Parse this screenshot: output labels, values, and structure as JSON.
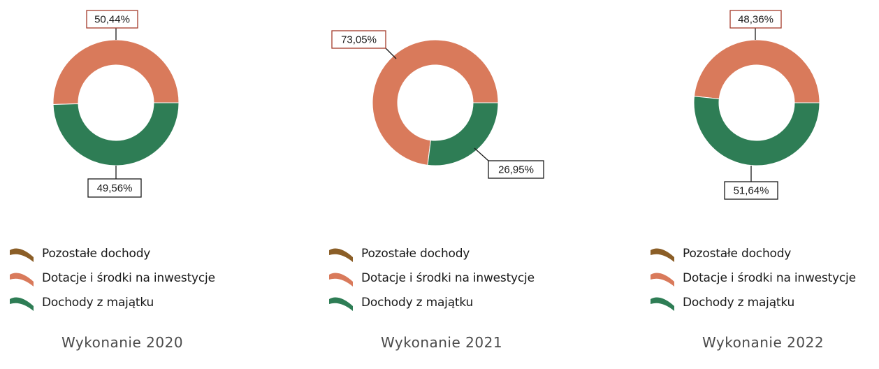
{
  "colors": {
    "pozostale": "#8B5E27",
    "dotacje": "#D97A5B",
    "majatek": "#2E7D55"
  },
  "chart_data": [
    {
      "type": "pie",
      "variant": "donut",
      "title": "Wykonanie 2020",
      "legend_position": "bottom",
      "categories": [
        "Pozostałe dochody",
        "Dotacje i środki na inwestycje",
        "Dochody z majątku"
      ],
      "values": [
        0.0,
        50.44,
        49.56
      ],
      "data_labels": [
        "",
        "50,44%",
        "49,56%"
      ]
    },
    {
      "type": "pie",
      "variant": "donut",
      "title": "Wykonanie 2021",
      "legend_position": "bottom",
      "categories": [
        "Pozostałe dochody",
        "Dotacje i środki na inwestycje",
        "Dochody z majątku"
      ],
      "values": [
        0.0,
        73.05,
        26.95
      ],
      "data_labels": [
        "",
        "73,05%",
        "26,95%"
      ]
    },
    {
      "type": "pie",
      "variant": "donut",
      "title": "Wykonanie 2022",
      "legend_position": "bottom",
      "categories": [
        "Pozostałe dochody",
        "Dotacje i środki na inwestycje",
        "Dochody z majątku"
      ],
      "values": [
        0.0,
        48.36,
        51.64
      ],
      "data_labels": [
        "",
        "48,36%",
        "51,64%"
      ]
    }
  ]
}
